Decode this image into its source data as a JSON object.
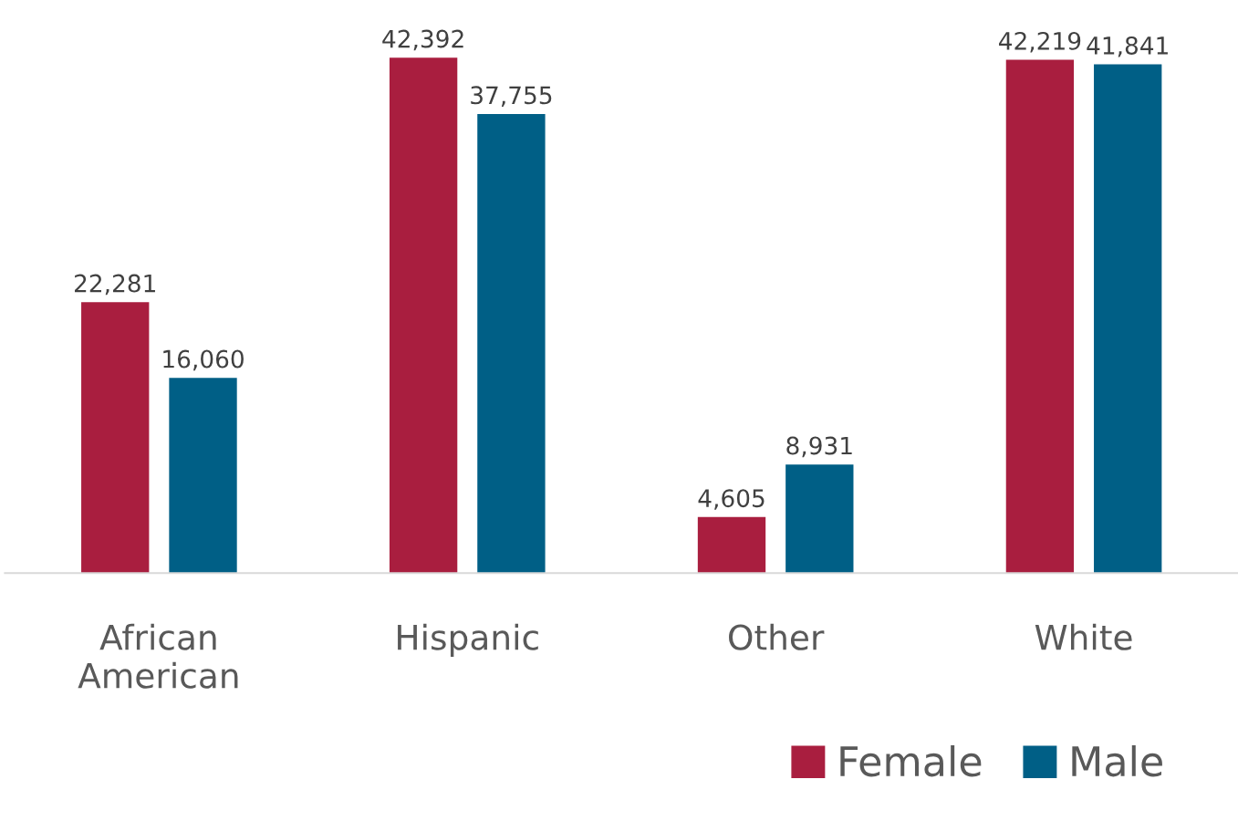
{
  "chart_data": {
    "type": "bar",
    "categories": [
      "African American",
      "Hispanic",
      "Other",
      "White"
    ],
    "series": [
      {
        "name": "Female",
        "color": "#a91e3f",
        "values": [
          22281,
          42392,
          4605,
          42219
        ],
        "value_labels": [
          "22,281",
          "42,392",
          "4,605",
          "42,219"
        ]
      },
      {
        "name": "Male",
        "color": "#005f86",
        "values": [
          16060,
          37755,
          8931,
          41841
        ],
        "value_labels": [
          "16,060",
          "37,755",
          "8,931",
          "41,841"
        ]
      }
    ],
    "grid": false,
    "legend": "bottom right"
  }
}
